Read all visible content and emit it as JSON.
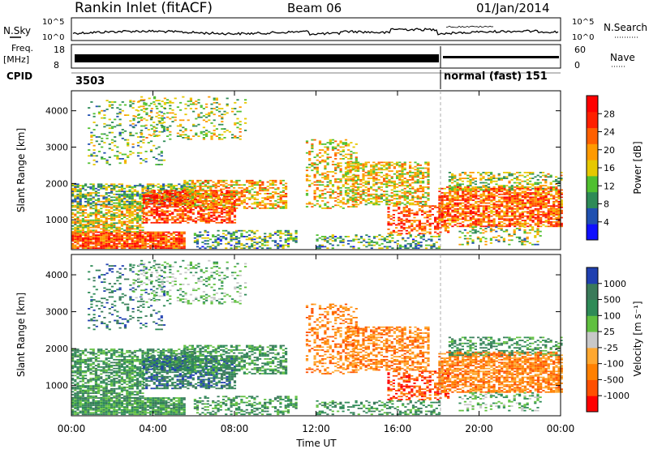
{
  "header": {
    "station": "Rankin Inlet (fitACF)",
    "beam": "Beam 06",
    "date": "01/Jan/2014"
  },
  "top_panels": {
    "nsky_label": "N.Sky",
    "nsearch_label": "N.Search",
    "noise_ticks": [
      "10^5",
      "10^0"
    ],
    "freq_label_1": "Freq.",
    "freq_label_2": "[MHz]",
    "freq_ticks": [
      "18",
      "8"
    ],
    "nave_label": "Nave",
    "nave_ticks": [
      "60",
      "0"
    ],
    "cpid_label": "CPID",
    "cpid_1": "3503",
    "cpid_2": "normal (fast) 151"
  },
  "colors": {
    "power": [
      "#1010ff",
      "#2050b0",
      "#2e8b57",
      "#50c030",
      "#e6c800",
      "#ff9a00",
      "#ff6000",
      "#ff2000",
      "#ff0000"
    ],
    "velocity": [
      "#ff0000",
      "#ff5000",
      "#ff8000",
      "#ffa830",
      "#c8c8c8",
      "#60c040",
      "#2e8b57",
      "#3a7a5a",
      "#2040b0"
    ]
  },
  "chart_data": [
    {
      "type": "heatmap",
      "name": "power",
      "xlabel": "Time UT",
      "ylabel": "Slant Range [km]",
      "x_ticks": [
        "00:00",
        "04:00",
        "08:00",
        "12:00",
        "16:00",
        "20:00",
        "00:00"
      ],
      "y_ticks": [
        1000,
        2000,
        3000,
        4000
      ],
      "xlim": [
        0,
        24
      ],
      "ylim": [
        180,
        4550
      ],
      "colorbar_label": "Power [dB]",
      "colorbar_ticks": [
        4,
        8,
        12,
        16,
        20,
        24,
        28
      ],
      "colorbar_range": [
        0,
        30
      ]
    },
    {
      "type": "heatmap",
      "name": "velocity",
      "xlabel": "Time UT",
      "ylabel": "Slant Range [km]",
      "x_ticks": [
        "00:00",
        "04:00",
        "08:00",
        "12:00",
        "16:00",
        "20:00",
        "00:00"
      ],
      "y_ticks": [
        1000,
        2000,
        3000,
        4000
      ],
      "xlim": [
        0,
        24
      ],
      "ylim": [
        180,
        4550
      ],
      "colorbar_label": "Velocity [m s⁻¹]",
      "colorbar_ticks": [
        "1000",
        "500",
        "100",
        "25",
        "-25",
        "-100",
        "-500",
        "-1000"
      ]
    }
  ]
}
